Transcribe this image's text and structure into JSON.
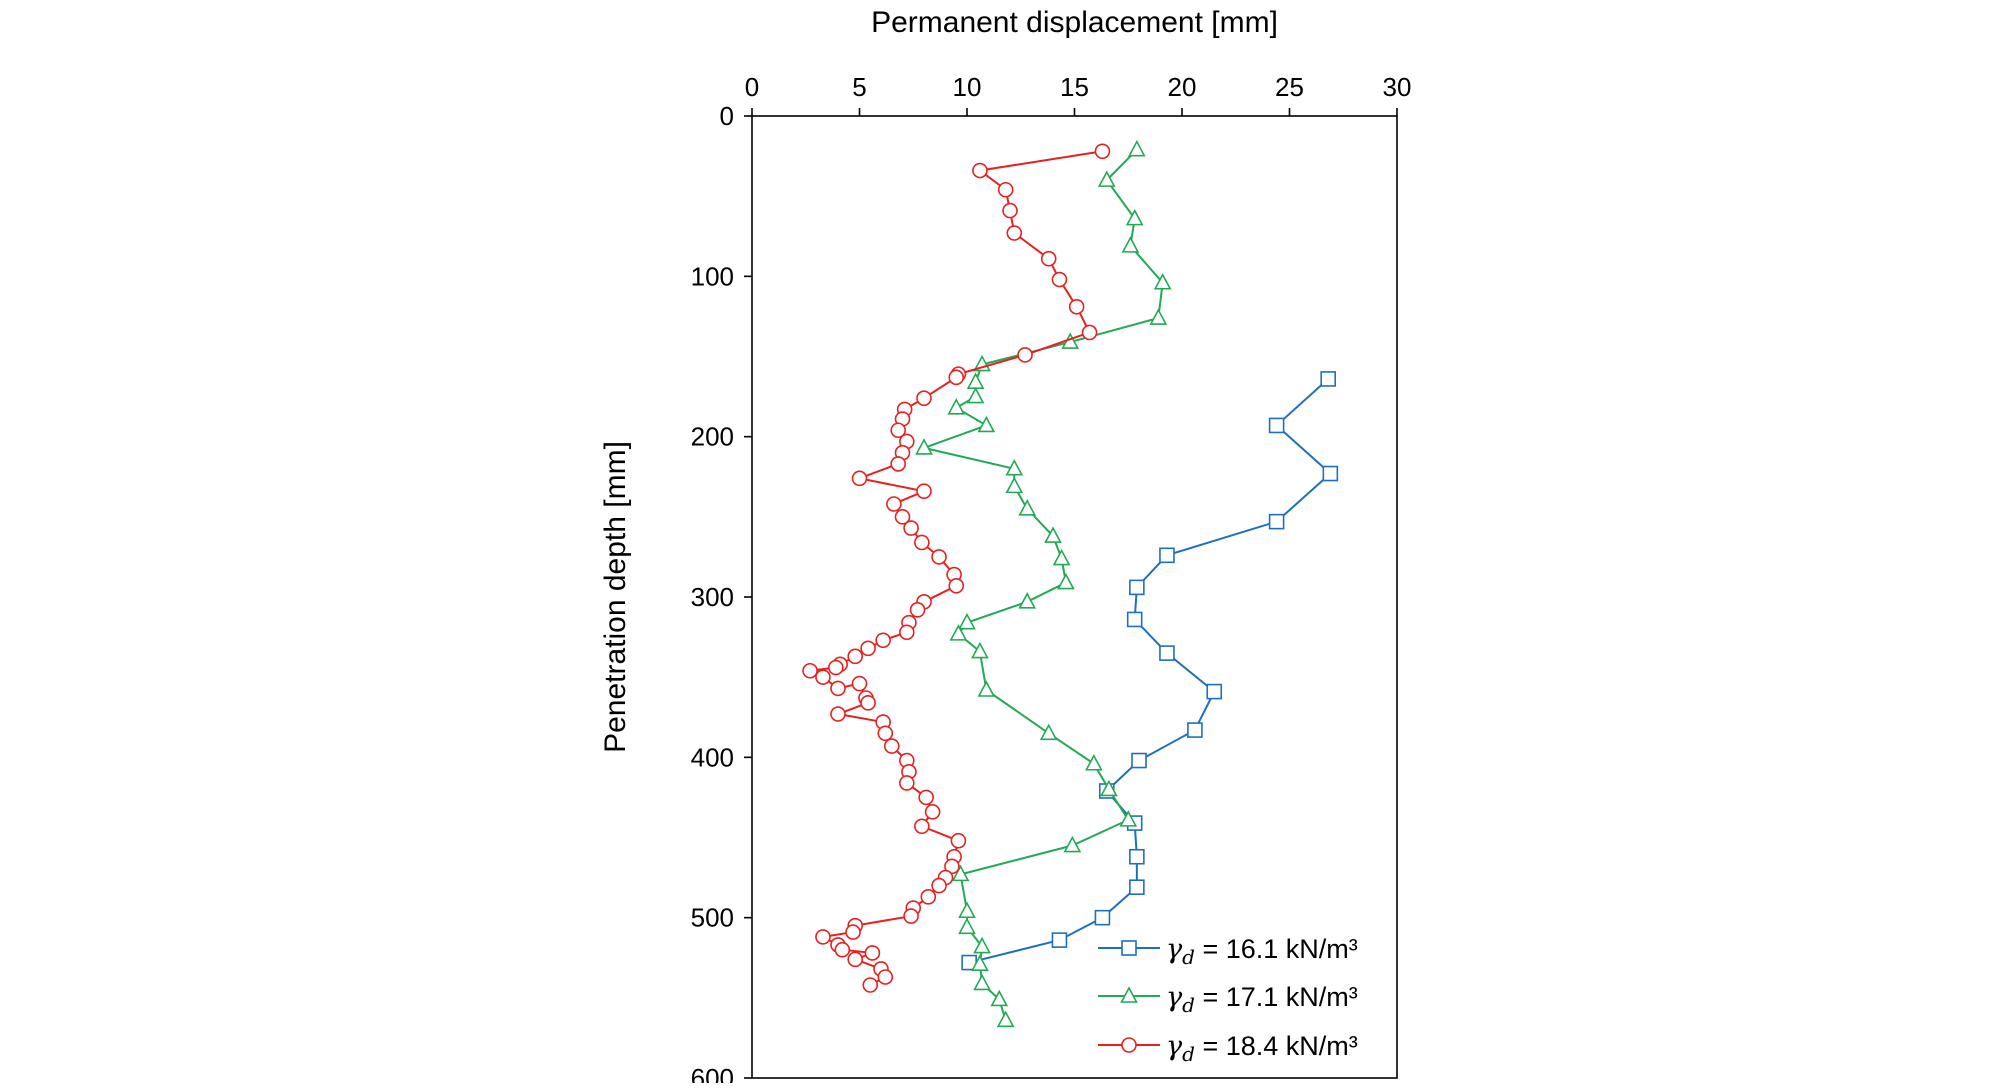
{
  "chart_data": {
    "type": "scatter",
    "xlabel": "Permanent displacement [mm]",
    "ylabel": "Penetration depth [mm]",
    "xlim": [
      0,
      30
    ],
    "ylim": [
      0,
      600
    ],
    "y_inverted": true,
    "x_axis_position": "top",
    "x_ticks": [
      "0",
      "5",
      "10",
      "15",
      "20",
      "25",
      "30"
    ],
    "y_ticks": [
      "0",
      "100",
      "200",
      "300",
      "400",
      "500",
      "600"
    ],
    "grid": false,
    "legend_position": "bottom-right",
    "series": [
      {
        "name": "γd = 16.1 kN/m³",
        "legend_symbol": "γ",
        "legend_subscript": "d",
        "legend_rest": " = 16.1 kN/m³",
        "color": "#1f6fbf",
        "marker": "square",
        "points": [
          [
            26.8,
            164
          ],
          [
            24.4,
            193
          ],
          [
            26.9,
            223
          ],
          [
            24.4,
            253
          ],
          [
            19.3,
            274
          ],
          [
            17.9,
            294
          ],
          [
            17.8,
            314
          ],
          [
            19.3,
            335
          ],
          [
            21.5,
            359
          ],
          [
            20.6,
            383
          ],
          [
            18.0,
            402
          ],
          [
            16.5,
            421
          ],
          [
            17.8,
            441
          ],
          [
            17.9,
            462
          ],
          [
            17.9,
            481
          ],
          [
            16.3,
            500
          ],
          [
            14.3,
            514
          ],
          [
            10.1,
            528
          ]
        ]
      },
      {
        "name": "γd = 17.1 kN/m³",
        "legend_symbol": "γ",
        "legend_subscript": "d",
        "legend_rest": " = 17.1 kN/m³",
        "color": "#22aa55",
        "marker": "triangle",
        "points": [
          [
            17.9,
            21
          ],
          [
            16.5,
            40
          ],
          [
            17.8,
            64
          ],
          [
            17.6,
            81
          ],
          [
            19.1,
            104
          ],
          [
            18.9,
            126
          ],
          [
            14.8,
            141
          ],
          [
            10.7,
            155
          ],
          [
            10.4,
            166
          ],
          [
            10.4,
            175
          ],
          [
            9.5,
            182
          ],
          [
            10.9,
            193
          ],
          [
            8.0,
            207
          ],
          [
            12.2,
            220
          ],
          [
            12.2,
            231
          ],
          [
            12.8,
            245
          ],
          [
            14.0,
            262
          ],
          [
            14.4,
            276
          ],
          [
            14.6,
            291
          ],
          [
            12.8,
            303
          ],
          [
            10.0,
            316
          ],
          [
            9.6,
            323
          ],
          [
            10.6,
            334
          ],
          [
            10.9,
            358
          ],
          [
            13.8,
            385
          ],
          [
            15.9,
            404
          ],
          [
            16.6,
            420
          ],
          [
            17.5,
            439
          ],
          [
            14.9,
            455
          ],
          [
            9.7,
            473
          ],
          [
            10.0,
            496
          ],
          [
            10.0,
            506
          ],
          [
            10.7,
            518
          ],
          [
            10.6,
            529
          ],
          [
            10.7,
            541
          ],
          [
            11.5,
            551
          ],
          [
            11.8,
            564
          ]
        ]
      },
      {
        "name": "γd = 18.4 kN/m³",
        "legend_symbol": "γ",
        "legend_subscript": "d",
        "legend_rest": " = 18.4 kN/m³",
        "color": "#e82020",
        "marker": "circle",
        "points": [
          [
            16.3,
            22
          ],
          [
            10.6,
            34
          ],
          [
            11.8,
            46
          ],
          [
            12.0,
            59
          ],
          [
            12.2,
            73
          ],
          [
            13.8,
            89
          ],
          [
            14.3,
            102
          ],
          [
            15.1,
            119
          ],
          [
            15.7,
            135
          ],
          [
            12.7,
            149
          ],
          [
            9.6,
            161
          ],
          [
            9.5,
            163
          ],
          [
            8.0,
            176
          ],
          [
            7.1,
            183
          ],
          [
            7.0,
            189
          ],
          [
            6.8,
            196
          ],
          [
            7.2,
            203
          ],
          [
            7.0,
            210
          ],
          [
            6.8,
            217
          ],
          [
            5.0,
            226
          ],
          [
            8.0,
            234
          ],
          [
            6.6,
            242
          ],
          [
            7.0,
            250
          ],
          [
            7.4,
            257
          ],
          [
            7.9,
            266
          ],
          [
            8.7,
            275
          ],
          [
            9.4,
            286
          ],
          [
            9.5,
            293
          ],
          [
            8.0,
            303
          ],
          [
            7.7,
            308
          ],
          [
            7.3,
            316
          ],
          [
            7.2,
            322
          ],
          [
            6.1,
            327
          ],
          [
            5.4,
            332
          ],
          [
            4.8,
            337
          ],
          [
            4.1,
            342
          ],
          [
            3.9,
            344
          ],
          [
            2.7,
            346
          ],
          [
            3.3,
            350
          ],
          [
            4.0,
            357
          ],
          [
            5.0,
            354
          ],
          [
            5.3,
            363
          ],
          [
            5.4,
            366
          ],
          [
            4.0,
            373
          ],
          [
            6.1,
            378
          ],
          [
            6.2,
            385
          ],
          [
            6.5,
            393
          ],
          [
            7.2,
            402
          ],
          [
            7.3,
            409
          ],
          [
            7.2,
            416
          ],
          [
            8.1,
            425
          ],
          [
            8.4,
            434
          ],
          [
            7.9,
            443
          ],
          [
            9.6,
            452
          ],
          [
            9.4,
            462
          ],
          [
            9.3,
            468
          ],
          [
            9.0,
            475
          ],
          [
            8.7,
            480
          ],
          [
            8.2,
            487
          ],
          [
            7.5,
            494
          ],
          [
            7.4,
            499
          ],
          [
            4.8,
            505
          ],
          [
            4.7,
            509
          ],
          [
            3.3,
            512
          ],
          [
            4.0,
            517
          ],
          [
            4.2,
            520
          ],
          [
            5.6,
            522
          ],
          [
            4.8,
            526
          ],
          [
            6.0,
            532
          ],
          [
            6.2,
            537
          ],
          [
            5.5,
            542
          ]
        ]
      }
    ]
  }
}
